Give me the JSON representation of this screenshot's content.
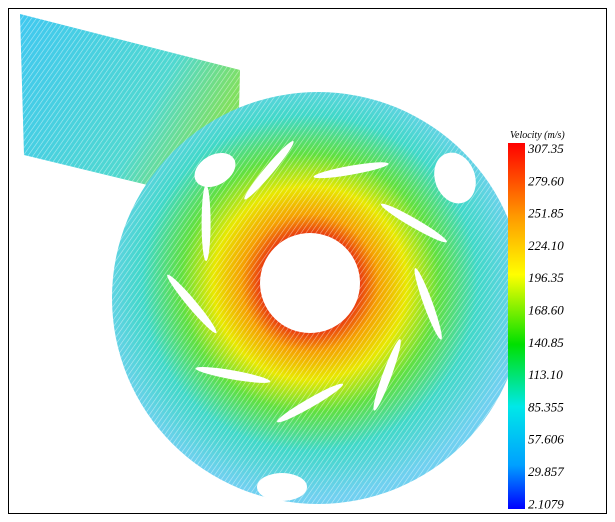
{
  "colorbar": {
    "title": "Velocity (m/s)",
    "labels": [
      "307.35",
      "279.60",
      "251.85",
      "224.10",
      "196.35",
      "168.60",
      "140.85",
      "113.10",
      "85.355",
      "57.606",
      "29.857",
      "2.1079"
    ]
  }
}
